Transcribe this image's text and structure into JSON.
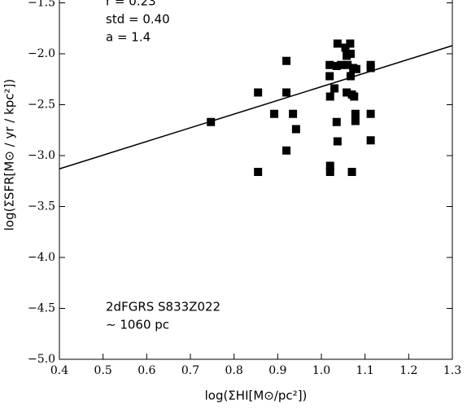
{
  "chart_data": {
    "type": "scatter",
    "x_label": "log(ΣHI[M⊙/pc²])",
    "y_label": "log(ΣSFR[M⊙ / yr / kpc²])",
    "annotations": [
      "r = 0.23",
      "std = 0.40",
      "a = 1.4",
      "2dFGRS S833Z022",
      "∼ 1060 pc"
    ],
    "xlim": [
      0.4,
      1.3
    ],
    "ylim": [
      -5,
      -1
    ],
    "xticks": [
      0.4,
      0.5,
      0.6,
      0.7,
      0.8,
      0.9,
      {
        "value": 1,
        "label": "1.0"
      },
      1.1,
      1.2,
      1.3
    ],
    "yticks": [
      {
        "value": -5,
        "label": "−5.0"
      },
      {
        "value": -4.5,
        "label": "−4.5"
      },
      {
        "value": -4,
        "label": "−4.0"
      },
      {
        "value": -3.5,
        "label": "−3.5"
      },
      {
        "value": -3,
        "label": "−3.0"
      },
      {
        "value": -2.5,
        "label": "−2.5"
      },
      {
        "value": -2,
        "label": "−2.0"
      },
      {
        "value": -1.5,
        "label": "−1.5"
      }
    ],
    "color": "#000000",
    "fit_line": {
      "x": [
        0.4,
        1.3
      ],
      "y": [
        -3.13,
        -1.92
      ]
    },
    "x": [
      0.747,
      0.855,
      0.855,
      0.892,
      0.92,
      0.92,
      0.92,
      0.935,
      0.942,
      1.019,
      1.019,
      1.02,
      1.02,
      1.02,
      1.03,
      1.035,
      1.037,
      1.035,
      1.037,
      1.045,
      1.055,
      1.058,
      1.058,
      1.06,
      1.066,
      1.067,
      1.067,
      1.07,
      1.07,
      1.073,
      1.075,
      1.078,
      1.078,
      1.08,
      1.113,
      1.113,
      1.113,
      1.113
    ],
    "y": [
      -2.67,
      -2.38,
      -3.16,
      -2.59,
      -2.07,
      -2.38,
      -2.95,
      -2.59,
      -2.74,
      -2.11,
      -2.22,
      -2.42,
      -3.1,
      -3.16,
      -2.34,
      -2.12,
      -1.9,
      -2.67,
      -2.86,
      -2.11,
      -1.94,
      -2.02,
      -2.38,
      -2.11,
      -1.9,
      -2.0,
      -2.22,
      -2.4,
      -3.16,
      -2.14,
      -2.42,
      -2.59,
      -2.66,
      -2.15,
      -2.11,
      -2.14,
      -2.59,
      -2.85
    ]
  }
}
